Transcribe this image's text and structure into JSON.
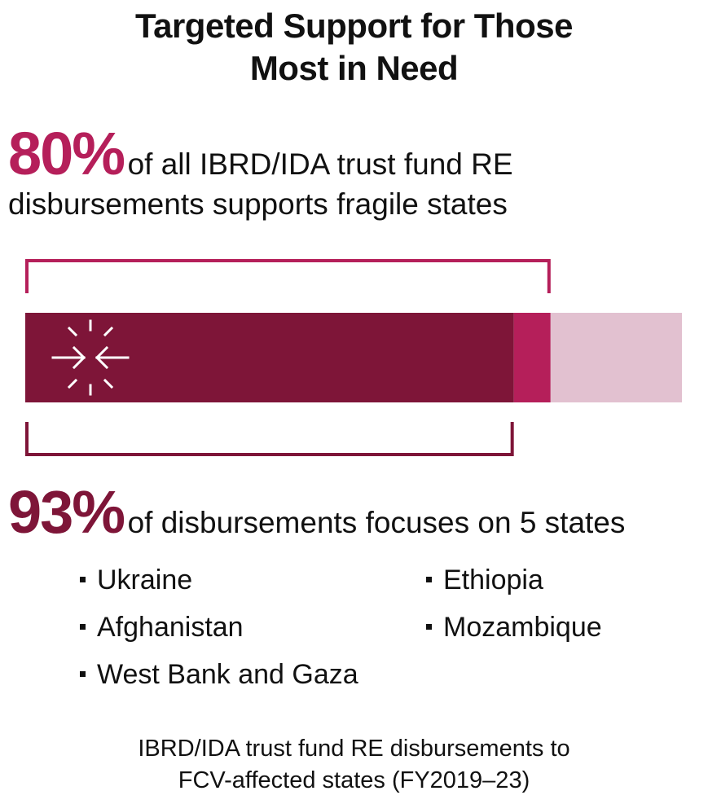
{
  "title_line1": "Targeted Support for Those",
  "title_line2": "Most in Need",
  "stat1": {
    "value": "80%",
    "text_line1": "of all IBRD/IDA trust fund RE",
    "text_line2": "disbursements supports fragile states"
  },
  "stat2": {
    "value": "93%",
    "text": "of disbursements focuses on 5 states"
  },
  "states_left": [
    "Ukraine",
    "Afghanistan",
    "West Bank and Gaza"
  ],
  "states_right": [
    "Ethiopia",
    "Mozambique"
  ],
  "caption_line1": "IBRD/IDA trust fund RE disbursements to",
  "caption_line2": "FCV-affected states (FY2019–23)",
  "chart_data": {
    "type": "bar",
    "orientation": "horizontal-stacked",
    "total": 100,
    "segments": [
      {
        "value": 74.4,
        "color": "#7e1538"
      },
      {
        "value": 5.6,
        "color": "#b51f5a"
      },
      {
        "value": 20,
        "color": "#e2c1d0"
      }
    ],
    "brackets": [
      {
        "label_value": "80%",
        "covers": 80,
        "position": "top",
        "color": "#b51f5a"
      },
      {
        "label_value": "93%",
        "covers": 74.4,
        "position": "bottom",
        "color": "#7e1538"
      }
    ],
    "icon": "arrows-converging-icon"
  }
}
